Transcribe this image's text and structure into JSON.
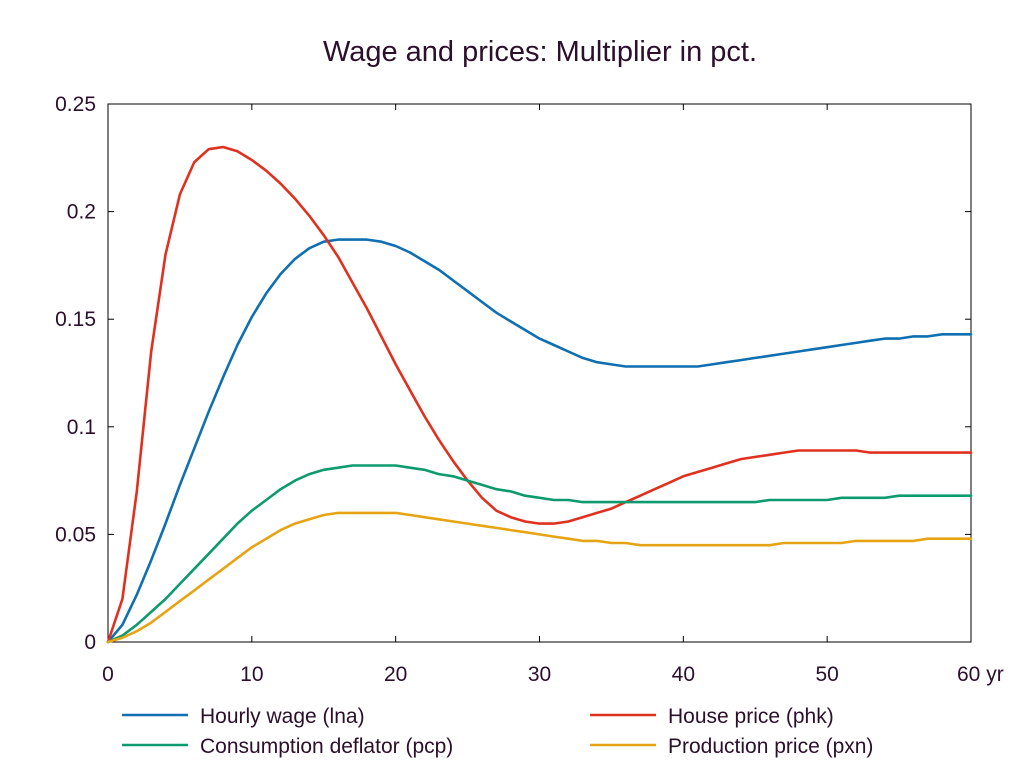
{
  "chart_data": {
    "type": "line",
    "title": "Wage and prices: Multiplier in pct.",
    "xlabel": "",
    "ylabel": "",
    "xlim": [
      0,
      60
    ],
    "ylim": [
      0,
      0.25
    ],
    "x_ticks": [
      0,
      10,
      20,
      30,
      40,
      50,
      60
    ],
    "x_tick_labels": [
      "0",
      "10",
      "20",
      "30",
      "40",
      "50",
      "60 yr"
    ],
    "y_ticks": [
      0,
      0.05,
      0.1,
      0.15,
      0.2,
      0.25
    ],
    "y_tick_labels": [
      "0",
      "0.05",
      "0.1",
      "0.15",
      "0.2",
      "0.25"
    ],
    "grid": false,
    "legend_position": "bottom",
    "x": [
      0,
      1,
      2,
      3,
      4,
      5,
      6,
      7,
      8,
      9,
      10,
      11,
      12,
      13,
      14,
      15,
      16,
      17,
      18,
      19,
      20,
      21,
      22,
      23,
      24,
      25,
      26,
      27,
      28,
      29,
      30,
      31,
      32,
      33,
      34,
      35,
      36,
      37,
      38,
      39,
      40,
      41,
      42,
      43,
      44,
      45,
      46,
      47,
      48,
      49,
      50,
      51,
      52,
      53,
      54,
      55,
      56,
      57,
      58,
      59,
      60
    ],
    "series": [
      {
        "name": "Hourly wage (lna)",
        "color": "#0f6fb1",
        "values": [
          0.0,
          0.008,
          0.022,
          0.038,
          0.055,
          0.073,
          0.09,
          0.107,
          0.123,
          0.138,
          0.151,
          0.162,
          0.171,
          0.178,
          0.183,
          0.186,
          0.187,
          0.187,
          0.187,
          0.186,
          0.184,
          0.181,
          0.177,
          0.173,
          0.168,
          0.163,
          0.158,
          0.153,
          0.149,
          0.145,
          0.141,
          0.138,
          0.135,
          0.132,
          0.13,
          0.129,
          0.128,
          0.128,
          0.128,
          0.128,
          0.128,
          0.128,
          0.129,
          0.13,
          0.131,
          0.132,
          0.133,
          0.134,
          0.135,
          0.136,
          0.137,
          0.138,
          0.139,
          0.14,
          0.141,
          0.141,
          0.142,
          0.142,
          0.143,
          0.143,
          0.143
        ]
      },
      {
        "name": "House price (phk)",
        "color": "#e0311f",
        "values": [
          0.0,
          0.02,
          0.07,
          0.135,
          0.18,
          0.208,
          0.223,
          0.229,
          0.23,
          0.228,
          0.224,
          0.219,
          0.213,
          0.206,
          0.198,
          0.189,
          0.179,
          0.167,
          0.155,
          0.142,
          0.129,
          0.117,
          0.105,
          0.094,
          0.084,
          0.075,
          0.067,
          0.061,
          0.058,
          0.056,
          0.055,
          0.055,
          0.056,
          0.058,
          0.06,
          0.062,
          0.065,
          0.068,
          0.071,
          0.074,
          0.077,
          0.079,
          0.081,
          0.083,
          0.085,
          0.086,
          0.087,
          0.088,
          0.089,
          0.089,
          0.089,
          0.089,
          0.089,
          0.088,
          0.088,
          0.088,
          0.088,
          0.088,
          0.088,
          0.088,
          0.088
        ]
      },
      {
        "name": "Consumption deflator (pcp)",
        "color": "#0e9a6f",
        "values": [
          0.0,
          0.003,
          0.008,
          0.014,
          0.02,
          0.027,
          0.034,
          0.041,
          0.048,
          0.055,
          0.061,
          0.066,
          0.071,
          0.075,
          0.078,
          0.08,
          0.081,
          0.082,
          0.082,
          0.082,
          0.082,
          0.081,
          0.08,
          0.078,
          0.077,
          0.075,
          0.073,
          0.071,
          0.07,
          0.068,
          0.067,
          0.066,
          0.066,
          0.065,
          0.065,
          0.065,
          0.065,
          0.065,
          0.065,
          0.065,
          0.065,
          0.065,
          0.065,
          0.065,
          0.065,
          0.065,
          0.066,
          0.066,
          0.066,
          0.066,
          0.066,
          0.067,
          0.067,
          0.067,
          0.067,
          0.068,
          0.068,
          0.068,
          0.068,
          0.068,
          0.068
        ]
      },
      {
        "name": "Production price (pxn)",
        "color": "#e6a415",
        "values": [
          0.0,
          0.002,
          0.005,
          0.009,
          0.014,
          0.019,
          0.024,
          0.029,
          0.034,
          0.039,
          0.044,
          0.048,
          0.052,
          0.055,
          0.057,
          0.059,
          0.06,
          0.06,
          0.06,
          0.06,
          0.06,
          0.059,
          0.058,
          0.057,
          0.056,
          0.055,
          0.054,
          0.053,
          0.052,
          0.051,
          0.05,
          0.049,
          0.048,
          0.047,
          0.047,
          0.046,
          0.046,
          0.045,
          0.045,
          0.045,
          0.045,
          0.045,
          0.045,
          0.045,
          0.045,
          0.045,
          0.045,
          0.046,
          0.046,
          0.046,
          0.046,
          0.046,
          0.047,
          0.047,
          0.047,
          0.047,
          0.047,
          0.048,
          0.048,
          0.048,
          0.048
        ]
      }
    ]
  }
}
